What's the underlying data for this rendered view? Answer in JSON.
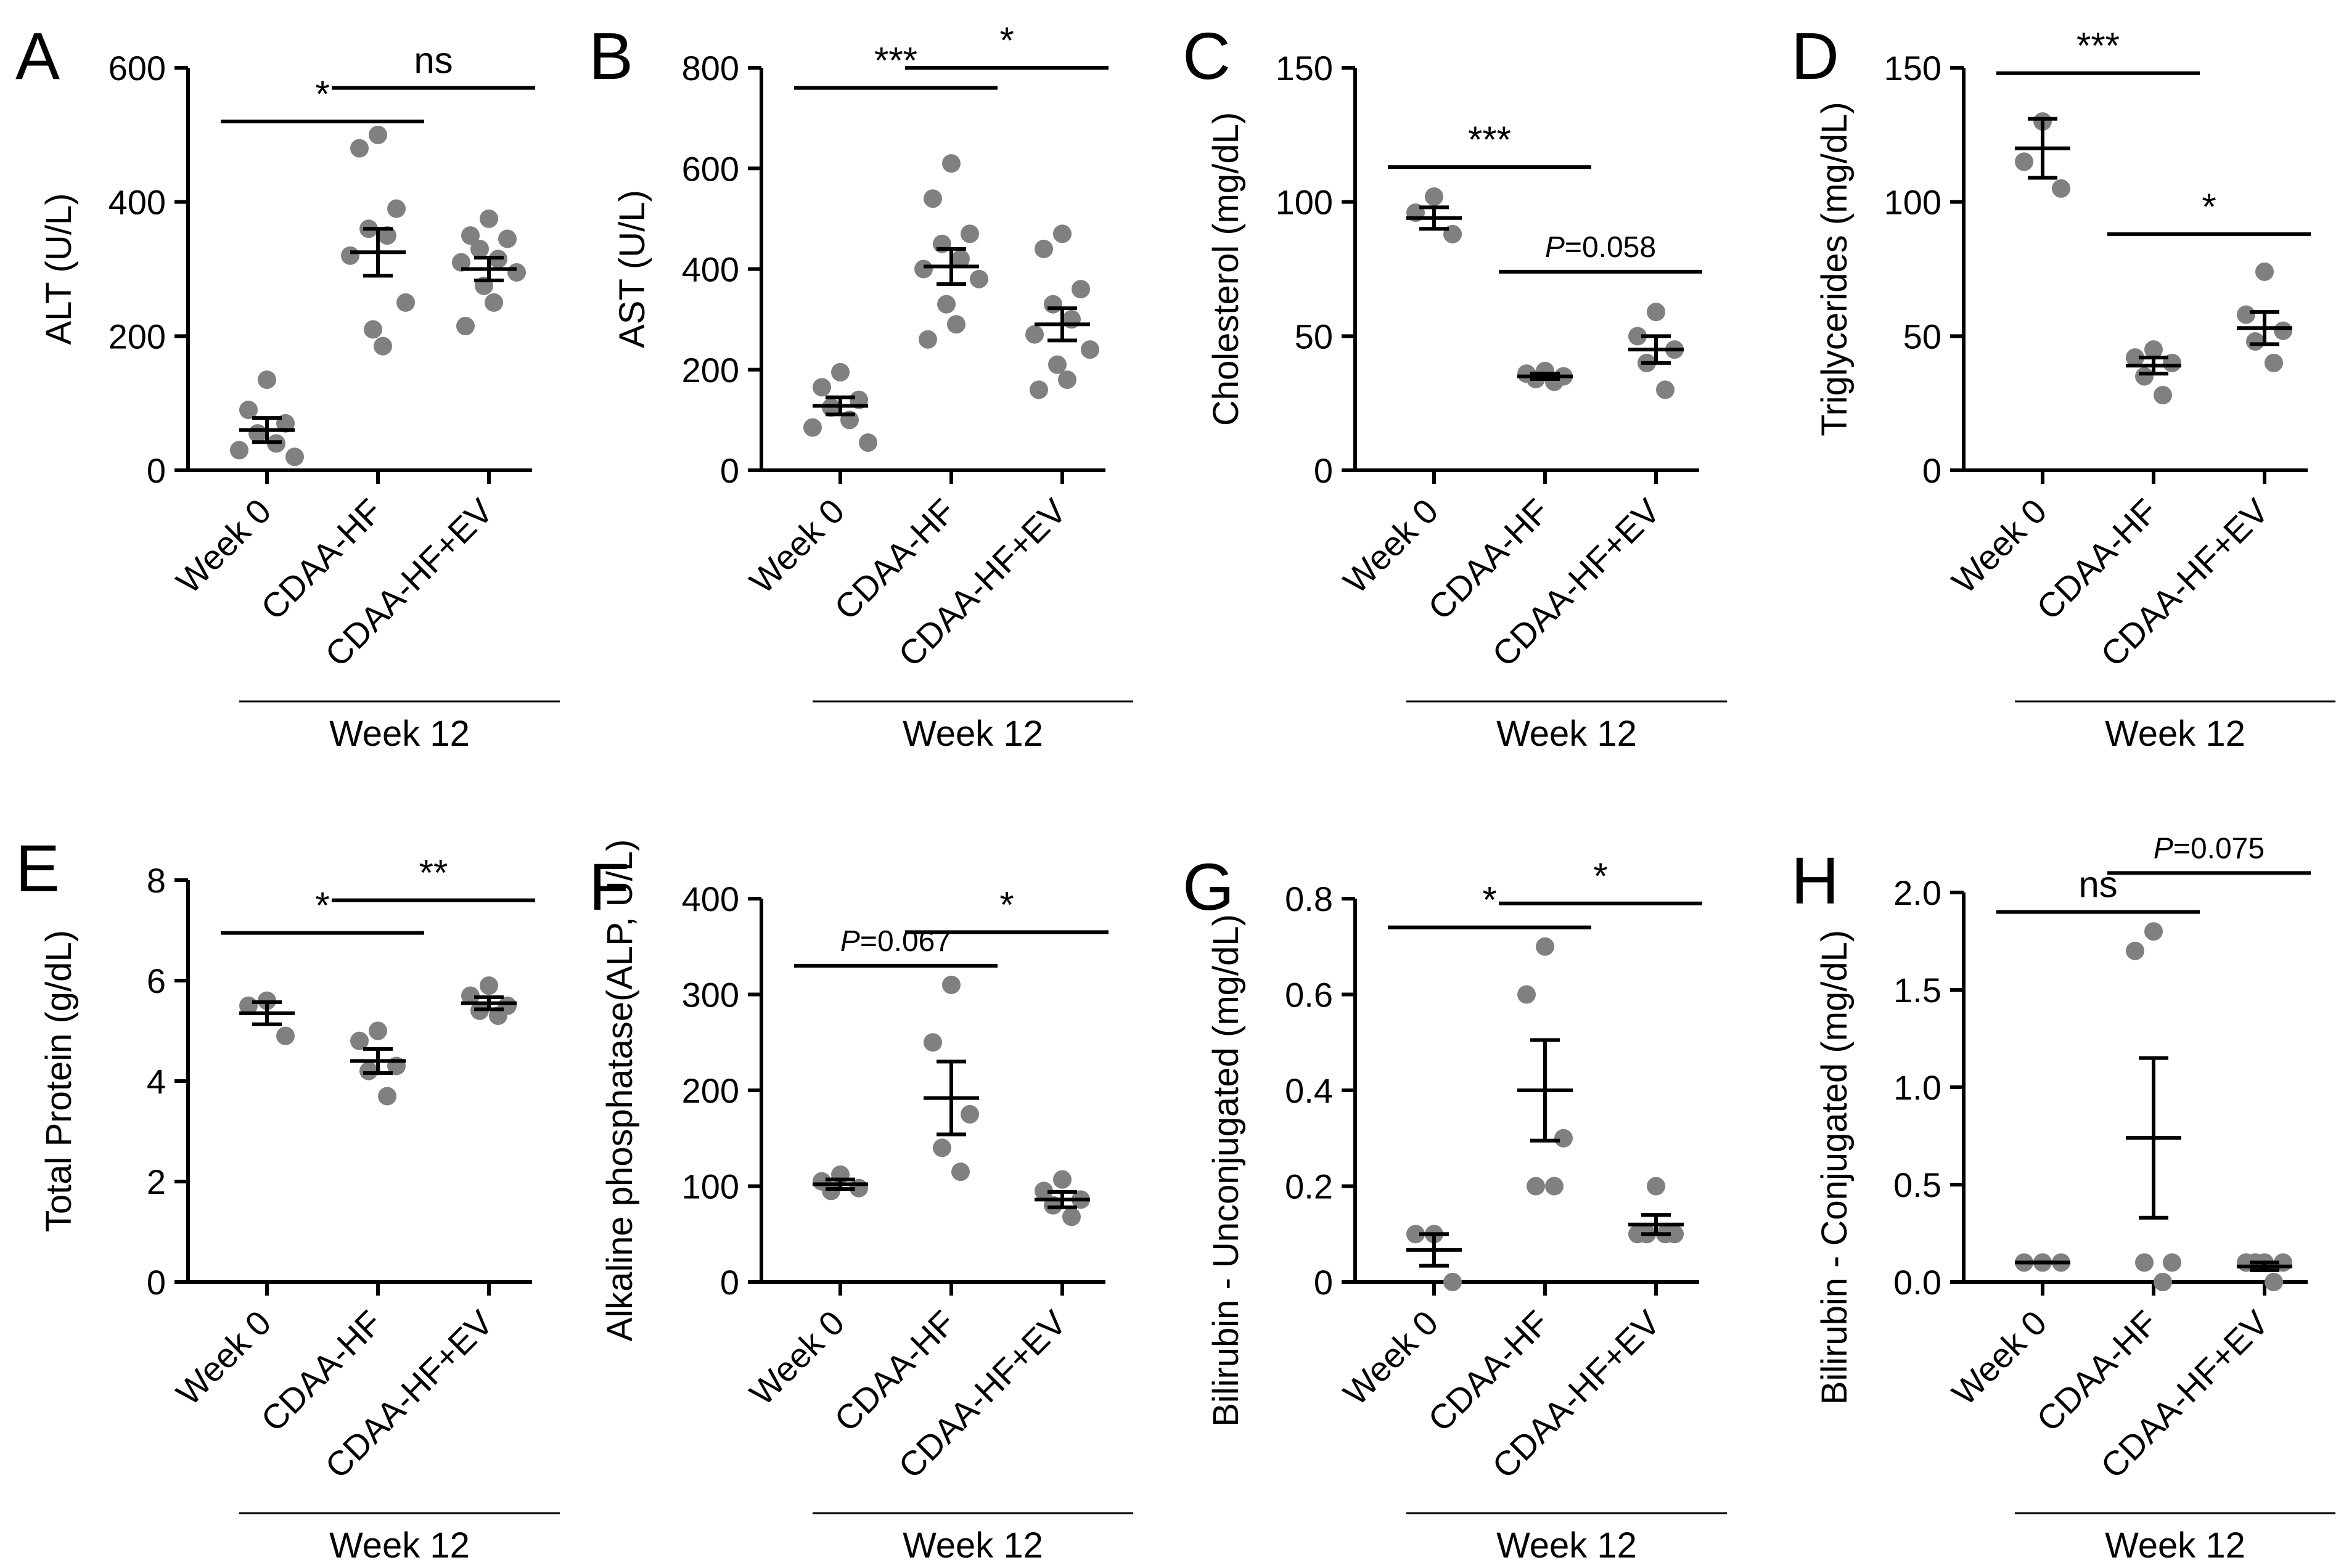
{
  "figure": {
    "group_label": "Week 12",
    "colors": {
      "dot": "#808080",
      "ink": "#000000",
      "background": "#ffffff"
    }
  },
  "chart_data": [
    {
      "panel": "A",
      "type": "scatter",
      "ylabel": "ALT (U/L)",
      "ylim": [
        0,
        600
      ],
      "yticks": [
        0,
        200,
        400,
        600
      ],
      "categories": [
        "Week 0",
        "CDAA-HF",
        "CDAA-HF+EV"
      ],
      "groups": [
        {
          "points": [
            135,
            90,
            70,
            55,
            40,
            30,
            20
          ],
          "mean": 60,
          "sem": 18
        },
        {
          "points": [
            500,
            480,
            390,
            360,
            350,
            320,
            250,
            210,
            185
          ],
          "mean": 325,
          "sem": 35
        },
        {
          "points": [
            375,
            350,
            345,
            330,
            315,
            310,
            295,
            275,
            250,
            215
          ],
          "mean": 300,
          "sem": 17
        }
      ],
      "significance": [
        {
          "from": 0,
          "to": 1,
          "label": "*",
          "y": 520,
          "italic_p": false
        },
        {
          "from": 1,
          "to": 2,
          "label": "ns",
          "y": 570,
          "italic_p": false
        }
      ]
    },
    {
      "panel": "B",
      "type": "scatter",
      "ylabel": "AST (U/L)",
      "ylim": [
        0,
        800
      ],
      "yticks": [
        0,
        200,
        400,
        600,
        800
      ],
      "categories": [
        "Week 0",
        "CDAA-HF",
        "CDAA-HF+EV"
      ],
      "groups": [
        {
          "points": [
            195,
            165,
            140,
            125,
            100,
            85,
            55
          ],
          "mean": 128,
          "sem": 17
        },
        {
          "points": [
            610,
            540,
            470,
            450,
            420,
            400,
            380,
            330,
            290,
            260
          ],
          "mean": 405,
          "sem": 35
        },
        {
          "points": [
            470,
            440,
            360,
            330,
            300,
            270,
            240,
            210,
            180,
            160
          ],
          "mean": 290,
          "sem": 32
        }
      ],
      "significance": [
        {
          "from": 0,
          "to": 1,
          "label": "***",
          "y": 760,
          "italic_p": false
        },
        {
          "from": 1,
          "to": 2,
          "label": "*",
          "y": 800,
          "italic_p": false
        }
      ]
    },
    {
      "panel": "C",
      "type": "scatter",
      "ylabel": "Cholesterol (mg/dL)",
      "ylim": [
        0,
        150
      ],
      "yticks": [
        0,
        50,
        100,
        150
      ],
      "categories": [
        "Week 0",
        "CDAA-HF",
        "CDAA-HF+EV"
      ],
      "groups": [
        {
          "points": [
            102,
            96,
            88
          ],
          "mean": 94,
          "sem": 4
        },
        {
          "points": [
            37,
            36,
            35,
            34,
            33
          ],
          "mean": 35,
          "sem": 1
        },
        {
          "points": [
            59,
            50,
            45,
            40,
            30
          ],
          "mean": 45,
          "sem": 5
        }
      ],
      "significance": [
        {
          "from": 0,
          "to": 1,
          "label": "***",
          "y": 113,
          "italic_p": false
        },
        {
          "from": 1,
          "to": 2,
          "label": "=0.058",
          "y": 74,
          "italic_p": true
        }
      ]
    },
    {
      "panel": "D",
      "type": "scatter",
      "ylabel": "Triglycerides (mg/dL)",
      "ylim": [
        0,
        150
      ],
      "yticks": [
        0,
        50,
        100,
        150
      ],
      "categories": [
        "Week 0",
        "CDAA-HF",
        "CDAA-HF+EV"
      ],
      "groups": [
        {
          "points": [
            130,
            115,
            105
          ],
          "mean": 120,
          "sem": 11
        },
        {
          "points": [
            45,
            42,
            40,
            35,
            28
          ],
          "mean": 39,
          "sem": 3
        },
        {
          "points": [
            74,
            58,
            52,
            48,
            40
          ],
          "mean": 53,
          "sem": 6
        }
      ],
      "significance": [
        {
          "from": 0,
          "to": 1,
          "label": "***",
          "y": 148,
          "italic_p": false
        },
        {
          "from": 1,
          "to": 2,
          "label": "*",
          "y": 88,
          "italic_p": false
        }
      ]
    },
    {
      "panel": "E",
      "type": "scatter",
      "ylabel": "Total Protein (g/dL)",
      "ylim": [
        0,
        8
      ],
      "yticks": [
        0,
        2,
        4,
        6,
        8
      ],
      "categories": [
        "Week 0",
        "CDAA-HF",
        "CDAA-HF+EV"
      ],
      "groups": [
        {
          "points": [
            5.6,
            5.5,
            4.9
          ],
          "mean": 5.35,
          "sem": 0.22
        },
        {
          "points": [
            5.0,
            4.8,
            4.3,
            4.2,
            3.7
          ],
          "mean": 4.4,
          "sem": 0.24
        },
        {
          "points": [
            5.9,
            5.7,
            5.5,
            5.4,
            5.3
          ],
          "mean": 5.55,
          "sem": 0.12
        }
      ],
      "significance": [
        {
          "from": 0,
          "to": 1,
          "label": "*",
          "y": 6.95,
          "italic_p": false
        },
        {
          "from": 1,
          "to": 2,
          "label": "**",
          "y": 7.6,
          "italic_p": false
        }
      ]
    },
    {
      "panel": "F",
      "type": "scatter",
      "ylabel": "Alkaline phosphatase(ALP, U/L)",
      "ylim": [
        0,
        400
      ],
      "yticks": [
        0,
        100,
        200,
        300,
        400
      ],
      "categories": [
        "Week 0",
        "CDAA-HF",
        "CDAA-HF+EV"
      ],
      "groups": [
        {
          "points": [
            112,
            105,
            98,
            95
          ],
          "mean": 102,
          "sem": 5
        },
        {
          "points": [
            310,
            250,
            175,
            140,
            115
          ],
          "mean": 192,
          "sem": 38
        },
        {
          "points": [
            107,
            95,
            86,
            80,
            68
          ],
          "mean": 86,
          "sem": 8
        }
      ],
      "significance": [
        {
          "from": 0,
          "to": 1,
          "label": "=0.067",
          "y": 330,
          "italic_p": true
        },
        {
          "from": 1,
          "to": 2,
          "label": "*",
          "y": 365,
          "italic_p": false
        }
      ]
    },
    {
      "panel": "G",
      "type": "scatter",
      "ylabel": "Bilirubin - Unconjugated (mg/dL)",
      "ylim": [
        0,
        0.8
      ],
      "yticks": [
        0,
        0.2,
        0.4,
        0.6,
        0.8
      ],
      "categories": [
        "Week 0",
        "CDAA-HF",
        "CDAA-HF+EV"
      ],
      "groups": [
        {
          "points": [
            0.1,
            0.1,
            0.0
          ],
          "mean": 0.067,
          "sem": 0.033
        },
        {
          "points": [
            0.7,
            0.6,
            0.3,
            0.2,
            0.2
          ],
          "mean": 0.4,
          "sem": 0.105
        },
        {
          "points": [
            0.2,
            0.1,
            0.1,
            0.1,
            0.1
          ],
          "mean": 0.12,
          "sem": 0.02
        }
      ],
      "significance": [
        {
          "from": 0,
          "to": 1,
          "label": "*",
          "y": 0.74,
          "italic_p": false
        },
        {
          "from": 1,
          "to": 2,
          "label": "*",
          "y": 0.79,
          "italic_p": false
        }
      ]
    },
    {
      "panel": "H",
      "type": "scatter",
      "ylabel": "Bilirubin - Conjugated (mg/dL)",
      "ylim": [
        0,
        2.0
      ],
      "yticks": [
        0,
        0.5,
        1.0,
        1.5,
        2.0
      ],
      "ytick_labels": [
        "0.0",
        "0.5",
        "1.0",
        "1.5",
        "2.0"
      ],
      "categories": [
        "Week 0",
        "CDAA-HF",
        "CDAA-HF+EV"
      ],
      "groups": [
        {
          "points": [
            0.1,
            0.1,
            0.1
          ],
          "mean": 0.1,
          "sem": 0.0
        },
        {
          "points": [
            1.8,
            1.7,
            0.1,
            0.1,
            0.0
          ],
          "mean": 0.74,
          "sem": 0.41
        },
        {
          "points": [
            0.1,
            0.1,
            0.1,
            0.1,
            0.0
          ],
          "mean": 0.08,
          "sem": 0.02
        }
      ],
      "significance": [
        {
          "from": 0,
          "to": 1,
          "label": "ns",
          "y": 1.9,
          "italic_p": false
        },
        {
          "from": 1,
          "to": 2,
          "label": "=0.075",
          "y": 2.1,
          "italic_p": true
        }
      ]
    }
  ]
}
